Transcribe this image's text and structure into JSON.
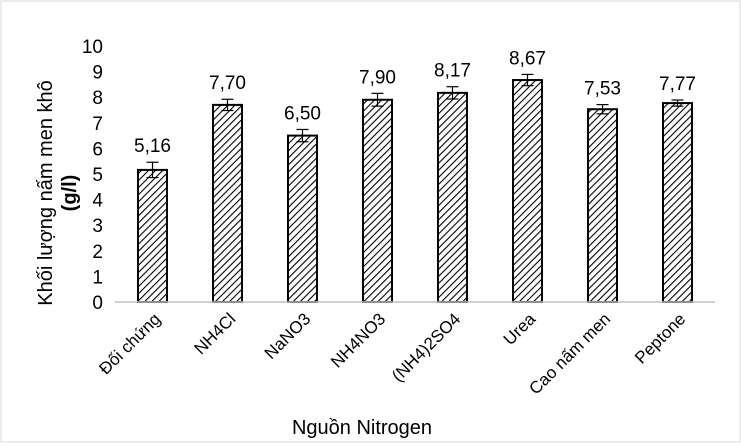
{
  "chart_data": {
    "type": "bar",
    "title": "",
    "xlabel": "Nguồn Nitrogen",
    "ylabel_line1": "Khối lượng nấm men khô",
    "ylabel_line2": "(g/l)",
    "ylim": [
      0,
      10
    ],
    "yticks": [
      "0",
      "1",
      "2",
      "3",
      "4",
      "5",
      "6",
      "7",
      "8",
      "9",
      "10"
    ],
    "grid": false,
    "categories": [
      "Đối chứng",
      "NH4Cl",
      "NaNO3",
      "NH4NO3",
      "(NH4)2SO4",
      "Urea",
      "Cao nấm men",
      "Peptone"
    ],
    "values": [
      5.16,
      7.7,
      6.5,
      7.9,
      8.17,
      8.67,
      7.53,
      7.77
    ],
    "labels": [
      "5,16",
      "7,70",
      "6,50",
      "7,90",
      "8,17",
      "8,67",
      "7,53",
      "7,77"
    ],
    "errors": [
      0.3,
      0.22,
      0.24,
      0.25,
      0.24,
      0.22,
      0.18,
      0.12
    ],
    "bar_pattern": "diagonal-hatch",
    "colors": {
      "bar_stroke": "#000000",
      "hatch": "#000000",
      "axis": "#bfbfbf",
      "border": "#d9d9d9"
    }
  }
}
